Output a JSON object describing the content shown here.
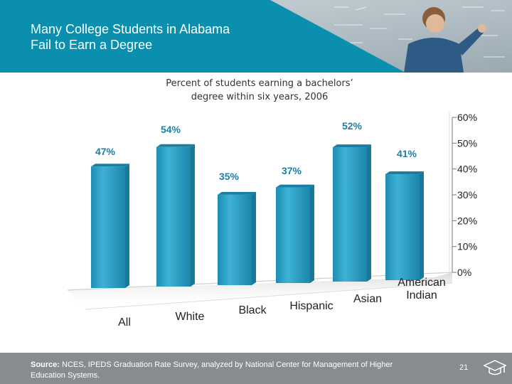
{
  "slide": {
    "title_line1": "Many College Students in Alabama",
    "title_line2": "Fail to Earn a Degree"
  },
  "colors": {
    "header": "#0b8fae",
    "bar_front": "#2a9fc2",
    "bar_side": "#17789a",
    "footer": "#888b8f"
  },
  "chart_data": {
    "type": "bar",
    "title_line1": "Percent of students earning a bachelors’",
    "title_line2": "degree within six years, 2006",
    "categories": [
      "All",
      "White",
      "Black",
      "Hispanic",
      "Asian",
      "American Indian"
    ],
    "category_lines": [
      [
        "All"
      ],
      [
        "White"
      ],
      [
        "Black"
      ],
      [
        "Hispanic"
      ],
      [
        "Asian"
      ],
      [
        "American",
        "Indian"
      ]
    ],
    "values": [
      47,
      54,
      35,
      37,
      52,
      41
    ],
    "value_labels": [
      "47%",
      "54%",
      "35%",
      "37%",
      "52%",
      "41%"
    ],
    "ylim": [
      0,
      60
    ],
    "yticks": [
      0,
      10,
      20,
      30,
      40,
      50,
      60
    ],
    "ytick_labels": [
      "0%",
      "10%",
      "20%",
      "30%",
      "40%",
      "50%",
      "60%"
    ],
    "axis_position": "right",
    "grid": false
  },
  "footer": {
    "source_label": "Source:",
    "source_text": " NCES, IPEDS Graduation Rate Survey, analyzed by National Center for Management of Higher Education Systems.",
    "page_number": "21"
  }
}
